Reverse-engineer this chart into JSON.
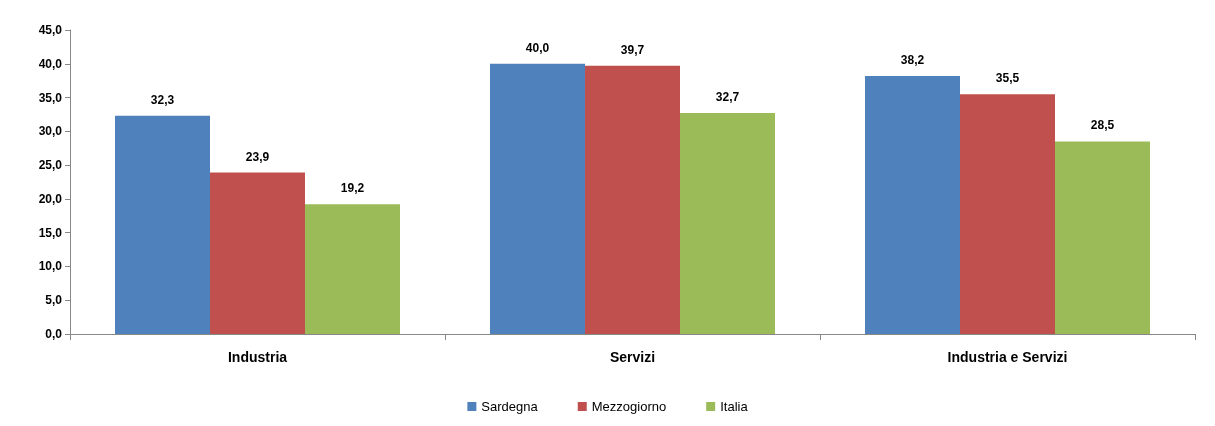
{
  "chart_data": {
    "type": "bar",
    "categories": [
      "Industria",
      "Servizi",
      "Industria e Servizi"
    ],
    "series": [
      {
        "name": "Sardegna",
        "color": "#4f81bd",
        "values": [
          32.3,
          40.0,
          38.2
        ],
        "value_labels": [
          "32,3",
          "40,0",
          "38,2"
        ]
      },
      {
        "name": "Mezzogiorno",
        "color": "#c0504d",
        "values": [
          23.9,
          39.7,
          35.5
        ],
        "value_labels": [
          "23,9",
          "39,7",
          "35,5"
        ]
      },
      {
        "name": "Italia",
        "color": "#9bbb59",
        "values": [
          19.2,
          32.7,
          28.5
        ],
        "value_labels": [
          "19,2",
          "32,7",
          "28,5"
        ]
      }
    ],
    "ylim": [
      0,
      45
    ],
    "yticks": [
      {
        "value": 0,
        "label": "0,0"
      },
      {
        "value": 5,
        "label": "5,0"
      },
      {
        "value": 10,
        "label": "10,0"
      },
      {
        "value": 15,
        "label": "15,0"
      },
      {
        "value": 20,
        "label": "20,0"
      },
      {
        "value": 25,
        "label": "25,0"
      },
      {
        "value": 30,
        "label": "30,0"
      },
      {
        "value": 35,
        "label": "35,0"
      },
      {
        "value": 40,
        "label": "40,0"
      },
      {
        "value": 45,
        "label": "45,0"
      }
    ],
    "grid": false,
    "legend": "bottom"
  }
}
